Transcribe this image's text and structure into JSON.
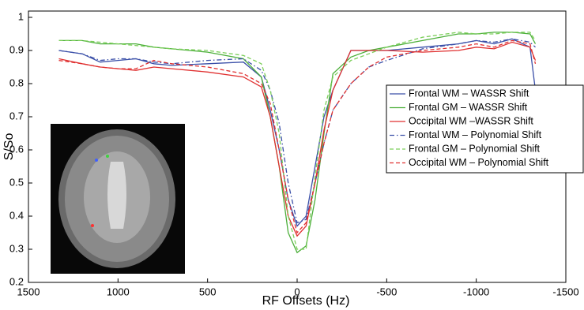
{
  "chart_data": {
    "type": "line",
    "x_label": "RF Offsets (Hz)",
    "y_label": "S/So",
    "x": [
      1330,
      1200,
      1100,
      1000,
      900,
      800,
      700,
      500,
      300,
      200,
      150,
      100,
      50,
      0,
      -50,
      -100,
      -150,
      -200,
      -300,
      -400,
      -500,
      -700,
      -900,
      -1000,
      -1100,
      -1200,
      -1300,
      -1330
    ],
    "series": [
      {
        "name": "Frontal WM – WASSR Shift",
        "color": "#3a4fa8",
        "linestyle": "solid",
        "values": [
          0.9,
          0.89,
          0.865,
          0.87,
          0.875,
          0.86,
          0.855,
          0.86,
          0.865,
          0.82,
          0.72,
          0.6,
          0.45,
          0.37,
          0.4,
          0.55,
          0.7,
          0.78,
          0.9,
          0.9,
          0.9,
          0.91,
          0.92,
          0.93,
          0.92,
          0.935,
          0.91,
          0.78
        ]
      },
      {
        "name": "Frontal GM – WASSR Shift",
        "color": "#4caf3a",
        "linestyle": "solid",
        "values": [
          0.93,
          0.93,
          0.92,
          0.92,
          0.92,
          0.91,
          0.905,
          0.895,
          0.875,
          0.82,
          0.7,
          0.55,
          0.35,
          0.29,
          0.31,
          0.45,
          0.65,
          0.83,
          0.88,
          0.9,
          0.91,
          0.93,
          0.95,
          0.95,
          0.955,
          0.955,
          0.95,
          0.92
        ]
      },
      {
        "name": "Occipital WM –WASSR Shift",
        "color": "#e03030",
        "linestyle": "solid",
        "values": [
          0.875,
          0.86,
          0.85,
          0.845,
          0.84,
          0.85,
          0.845,
          0.835,
          0.82,
          0.79,
          0.7,
          0.55,
          0.4,
          0.34,
          0.37,
          0.5,
          0.66,
          0.78,
          0.9,
          0.9,
          0.9,
          0.895,
          0.9,
          0.91,
          0.905,
          0.925,
          0.91,
          0.87
        ]
      },
      {
        "name": "Frontal WM – Polynomial Shift",
        "color": "#3a4fa8",
        "linestyle": "dashdot",
        "values": [
          0.9,
          0.89,
          0.87,
          0.875,
          0.875,
          0.865,
          0.86,
          0.87,
          0.875,
          0.84,
          0.78,
          0.68,
          0.5,
          0.38,
          0.39,
          0.5,
          0.62,
          0.72,
          0.8,
          0.85,
          0.87,
          0.905,
          0.92,
          0.93,
          0.925,
          0.935,
          0.925,
          0.91
        ]
      },
      {
        "name": "Frontal GM – Polynomial Shift",
        "color": "#7ccf5a",
        "linestyle": "dashed",
        "values": [
          0.93,
          0.93,
          0.925,
          0.92,
          0.915,
          0.91,
          0.905,
          0.9,
          0.885,
          0.86,
          0.78,
          0.65,
          0.4,
          0.3,
          0.3,
          0.52,
          0.72,
          0.82,
          0.87,
          0.89,
          0.91,
          0.94,
          0.955,
          0.95,
          0.95,
          0.955,
          0.955,
          0.93
        ]
      },
      {
        "name": "Occipital WM – Polynomial Shift",
        "color": "#e03030",
        "linestyle": "dashed",
        "values": [
          0.87,
          0.86,
          0.85,
          0.845,
          0.845,
          0.87,
          0.86,
          0.85,
          0.83,
          0.8,
          0.74,
          0.6,
          0.45,
          0.35,
          0.38,
          0.5,
          0.62,
          0.72,
          0.8,
          0.85,
          0.88,
          0.9,
          0.91,
          0.92,
          0.91,
          0.93,
          0.92,
          0.86
        ]
      }
    ],
    "xlim": [
      1500,
      -1500
    ],
    "xticks": [
      1500,
      1000,
      500,
      0,
      -500,
      -1000,
      -1500
    ],
    "ylim": [
      0.2,
      1
    ],
    "yticks": [
      0.2,
      0.3,
      0.4,
      0.5,
      0.6,
      0.7,
      0.8,
      0.9,
      1
    ],
    "grid": false,
    "legend": "right"
  }
}
